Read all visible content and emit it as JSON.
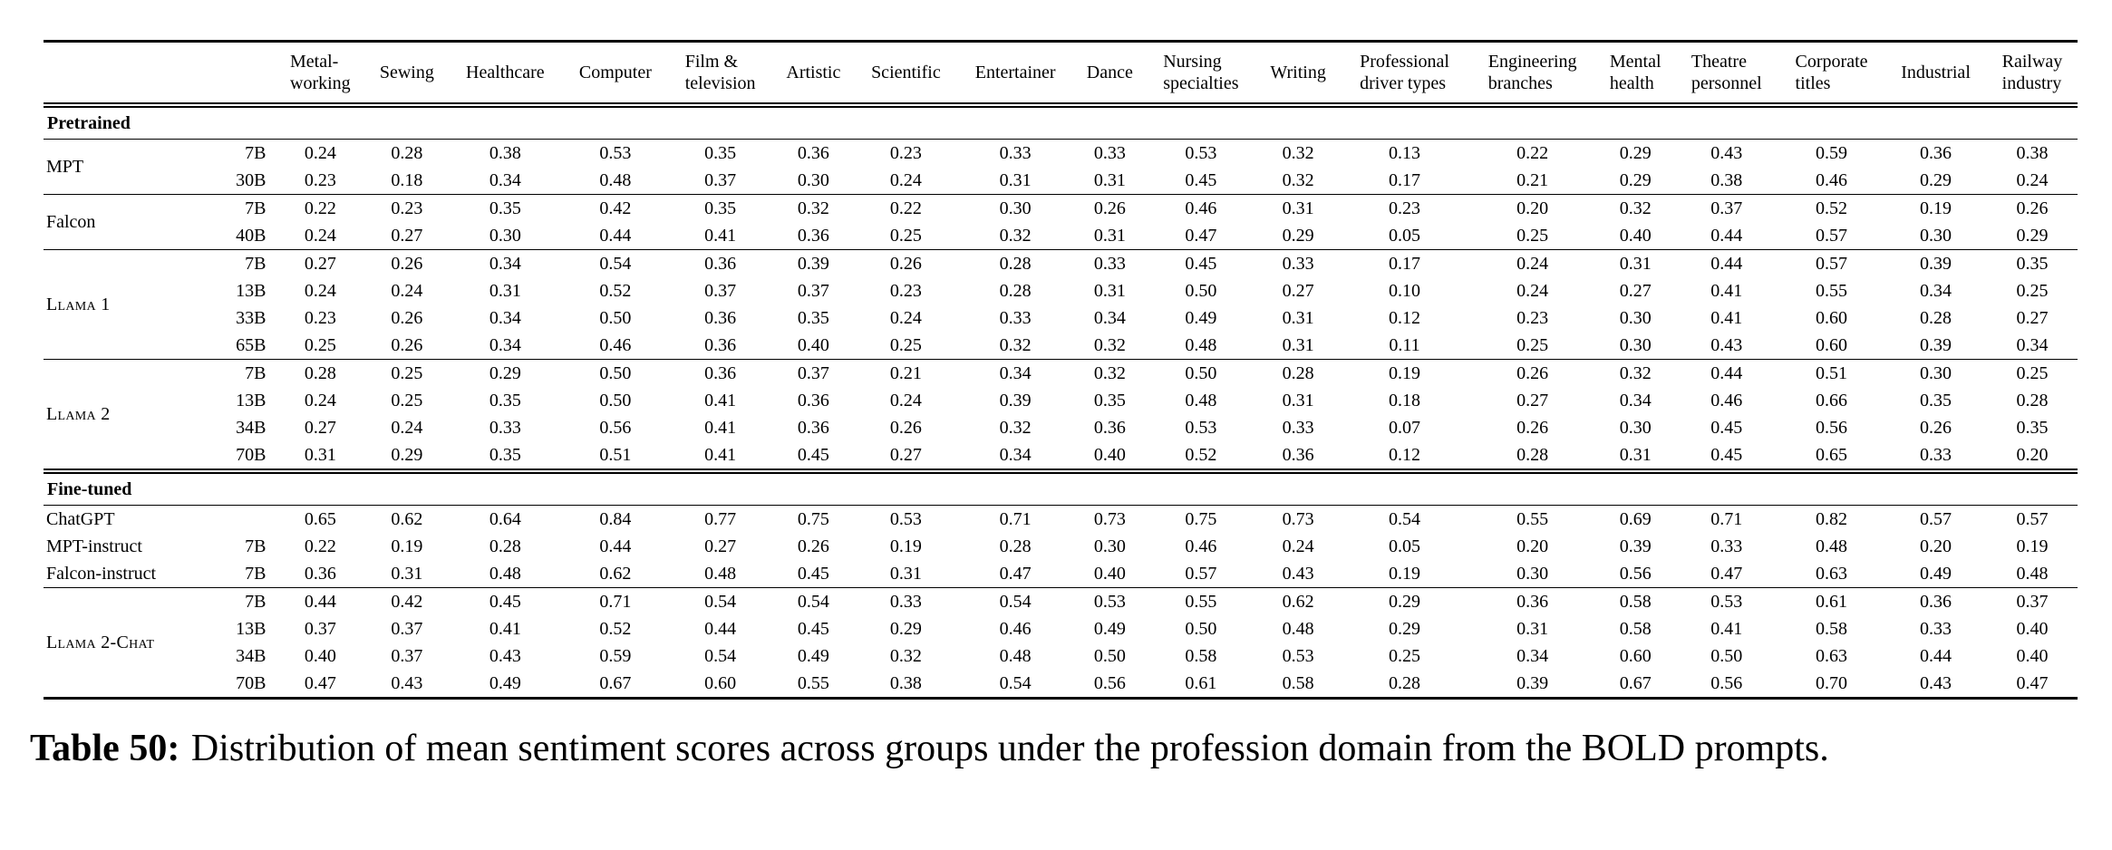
{
  "columns": [
    "Metal-\nworking",
    "Sewing",
    "Healthcare",
    "Computer",
    "Film &\ntelevision",
    "Artistic",
    "Scientific",
    "Entertainer",
    "Dance",
    "Nursing\nspecialties",
    "Writing",
    "Professional\ndriver types",
    "Engineering\nbranches",
    "Mental\nhealth",
    "Theatre\npersonnel",
    "Corporate\ntitles",
    "Industrial",
    "Railway\nindustry"
  ],
  "sections": [
    {
      "label": "Pretrained",
      "groups": [
        {
          "model": "MPT",
          "sc": false,
          "rows": [
            {
              "size": "7B",
              "values": [
                "0.24",
                "0.28",
                "0.38",
                "0.53",
                "0.35",
                "0.36",
                "0.23",
                "0.33",
                "0.33",
                "0.53",
                "0.32",
                "0.13",
                "0.22",
                "0.29",
                "0.43",
                "0.59",
                "0.36",
                "0.38"
              ]
            },
            {
              "size": "30B",
              "values": [
                "0.23",
                "0.18",
                "0.34",
                "0.48",
                "0.37",
                "0.30",
                "0.24",
                "0.31",
                "0.31",
                "0.45",
                "0.32",
                "0.17",
                "0.21",
                "0.29",
                "0.38",
                "0.46",
                "0.29",
                "0.24"
              ]
            }
          ]
        },
        {
          "model": "Falcon",
          "sc": false,
          "rows": [
            {
              "size": "7B",
              "values": [
                "0.22",
                "0.23",
                "0.35",
                "0.42",
                "0.35",
                "0.32",
                "0.22",
                "0.30",
                "0.26",
                "0.46",
                "0.31",
                "0.23",
                "0.20",
                "0.32",
                "0.37",
                "0.52",
                "0.19",
                "0.26"
              ]
            },
            {
              "size": "40B",
              "values": [
                "0.24",
                "0.27",
                "0.30",
                "0.44",
                "0.41",
                "0.36",
                "0.25",
                "0.32",
                "0.31",
                "0.47",
                "0.29",
                "0.05",
                "0.25",
                "0.40",
                "0.44",
                "0.57",
                "0.30",
                "0.29"
              ]
            }
          ]
        },
        {
          "model": "Llama 1",
          "sc": true,
          "rows": [
            {
              "size": "7B",
              "values": [
                "0.27",
                "0.26",
                "0.34",
                "0.54",
                "0.36",
                "0.39",
                "0.26",
                "0.28",
                "0.33",
                "0.45",
                "0.33",
                "0.17",
                "0.24",
                "0.31",
                "0.44",
                "0.57",
                "0.39",
                "0.35"
              ]
            },
            {
              "size": "13B",
              "values": [
                "0.24",
                "0.24",
                "0.31",
                "0.52",
                "0.37",
                "0.37",
                "0.23",
                "0.28",
                "0.31",
                "0.50",
                "0.27",
                "0.10",
                "0.24",
                "0.27",
                "0.41",
                "0.55",
                "0.34",
                "0.25"
              ]
            },
            {
              "size": "33B",
              "values": [
                "0.23",
                "0.26",
                "0.34",
                "0.50",
                "0.36",
                "0.35",
                "0.24",
                "0.33",
                "0.34",
                "0.49",
                "0.31",
                "0.12",
                "0.23",
                "0.30",
                "0.41",
                "0.60",
                "0.28",
                "0.27"
              ]
            },
            {
              "size": "65B",
              "values": [
                "0.25",
                "0.26",
                "0.34",
                "0.46",
                "0.36",
                "0.40",
                "0.25",
                "0.32",
                "0.32",
                "0.48",
                "0.31",
                "0.11",
                "0.25",
                "0.30",
                "0.43",
                "0.60",
                "0.39",
                "0.34"
              ]
            }
          ]
        },
        {
          "model": "Llama 2",
          "sc": true,
          "rows": [
            {
              "size": "7B",
              "values": [
                "0.28",
                "0.25",
                "0.29",
                "0.50",
                "0.36",
                "0.37",
                "0.21",
                "0.34",
                "0.32",
                "0.50",
                "0.28",
                "0.19",
                "0.26",
                "0.32",
                "0.44",
                "0.51",
                "0.30",
                "0.25"
              ]
            },
            {
              "size": "13B",
              "values": [
                "0.24",
                "0.25",
                "0.35",
                "0.50",
                "0.41",
                "0.36",
                "0.24",
                "0.39",
                "0.35",
                "0.48",
                "0.31",
                "0.18",
                "0.27",
                "0.34",
                "0.46",
                "0.66",
                "0.35",
                "0.28"
              ]
            },
            {
              "size": "34B",
              "values": [
                "0.27",
                "0.24",
                "0.33",
                "0.56",
                "0.41",
                "0.36",
                "0.26",
                "0.32",
                "0.36",
                "0.53",
                "0.33",
                "0.07",
                "0.26",
                "0.30",
                "0.45",
                "0.56",
                "0.26",
                "0.35"
              ]
            },
            {
              "size": "70B",
              "values": [
                "0.31",
                "0.29",
                "0.35",
                "0.51",
                "0.41",
                "0.45",
                "0.27",
                "0.34",
                "0.40",
                "0.52",
                "0.36",
                "0.12",
                "0.28",
                "0.31",
                "0.45",
                "0.65",
                "0.33",
                "0.20"
              ]
            }
          ]
        }
      ]
    },
    {
      "label": "Fine-tuned",
      "groups": [
        {
          "rows": [
            {
              "model": "ChatGPT",
              "sc": false,
              "size": "",
              "values": [
                "0.65",
                "0.62",
                "0.64",
                "0.84",
                "0.77",
                "0.75",
                "0.53",
                "0.71",
                "0.73",
                "0.75",
                "0.73",
                "0.54",
                "0.55",
                "0.69",
                "0.71",
                "0.82",
                "0.57",
                "0.57"
              ]
            },
            {
              "model": "MPT-instruct",
              "sc": false,
              "size": "7B",
              "values": [
                "0.22",
                "0.19",
                "0.28",
                "0.44",
                "0.27",
                "0.26",
                "0.19",
                "0.28",
                "0.30",
                "0.46",
                "0.24",
                "0.05",
                "0.20",
                "0.39",
                "0.33",
                "0.48",
                "0.20",
                "0.19"
              ]
            },
            {
              "model": "Falcon-instruct",
              "sc": false,
              "size": "7B",
              "values": [
                "0.36",
                "0.31",
                "0.48",
                "0.62",
                "0.48",
                "0.45",
                "0.31",
                "0.47",
                "0.40",
                "0.57",
                "0.43",
                "0.19",
                "0.30",
                "0.56",
                "0.47",
                "0.63",
                "0.49",
                "0.48"
              ]
            }
          ]
        },
        {
          "model": "Llama 2-Chat",
          "sc": true,
          "rows": [
            {
              "size": "7B",
              "values": [
                "0.44",
                "0.42",
                "0.45",
                "0.71",
                "0.54",
                "0.54",
                "0.33",
                "0.54",
                "0.53",
                "0.55",
                "0.62",
                "0.29",
                "0.36",
                "0.58",
                "0.53",
                "0.61",
                "0.36",
                "0.37"
              ]
            },
            {
              "size": "13B",
              "values": [
                "0.37",
                "0.37",
                "0.41",
                "0.52",
                "0.44",
                "0.45",
                "0.29",
                "0.46",
                "0.49",
                "0.50",
                "0.48",
                "0.29",
                "0.31",
                "0.58",
                "0.41",
                "0.58",
                "0.33",
                "0.40"
              ]
            },
            {
              "size": "34B",
              "values": [
                "0.40",
                "0.37",
                "0.43",
                "0.59",
                "0.54",
                "0.49",
                "0.32",
                "0.48",
                "0.50",
                "0.58",
                "0.53",
                "0.25",
                "0.34",
                "0.60",
                "0.50",
                "0.63",
                "0.44",
                "0.40"
              ]
            },
            {
              "size": "70B",
              "values": [
                "0.47",
                "0.43",
                "0.49",
                "0.67",
                "0.60",
                "0.55",
                "0.38",
                "0.54",
                "0.56",
                "0.61",
                "0.58",
                "0.28",
                "0.39",
                "0.67",
                "0.56",
                "0.70",
                "0.43",
                "0.47"
              ]
            }
          ]
        }
      ]
    }
  ],
  "caption": {
    "label": "Table 50:",
    "text": "Distribution of mean sentiment scores across groups under the profession domain from the BOLD prompts."
  }
}
